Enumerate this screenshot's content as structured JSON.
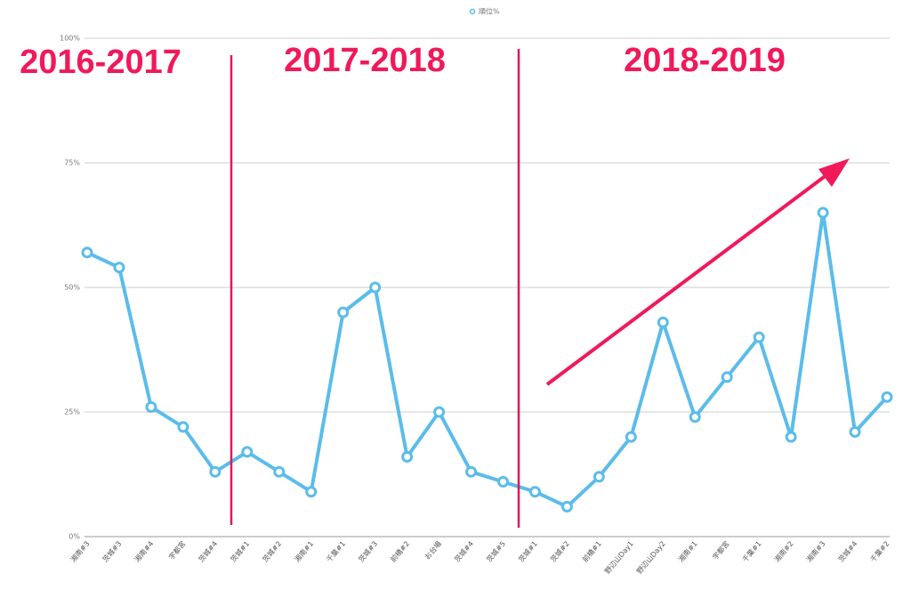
{
  "chart_data": {
    "type": "line",
    "legend": "順位%",
    "annotations": [
      "2016-2017",
      "2017-2018",
      "2018-2019"
    ],
    "categories": [
      "湘南#3",
      "茨城#3",
      "湘南#4",
      "宇都宮",
      "茨城#4",
      "茨城#1",
      "茨城#2",
      "湘南#1",
      "千葉#1",
      "茨城#3",
      "前橋#2",
      "お台場",
      "茨城#4",
      "茨城#5",
      "茨城#1",
      "茨城#2",
      "前橋#1",
      "野辺山Day1",
      "野辺山Day2",
      "湘南#1",
      "宇都宮",
      "千葉#1",
      "湘南#2",
      "湘南#3",
      "茨城#4",
      "千葉#2"
    ],
    "series": [
      {
        "name": "順位%",
        "color": "#5bbcea",
        "values": [
          57,
          54,
          26,
          22,
          13,
          17,
          13,
          9,
          45,
          50,
          16,
          25,
          13,
          11,
          9,
          6,
          12,
          20,
          43,
          24,
          32,
          40,
          20,
          65,
          21,
          28
        ]
      }
    ],
    "ylim": [
      0,
      100
    ],
    "yticks": [
      {
        "value": 0,
        "label": "0%"
      },
      {
        "value": 25,
        "label": "25%"
      },
      {
        "value": 50,
        "label": "50%"
      },
      {
        "value": 75,
        "label": "75%"
      },
      {
        "value": 100,
        "label": "100%"
      }
    ],
    "grid": true
  }
}
